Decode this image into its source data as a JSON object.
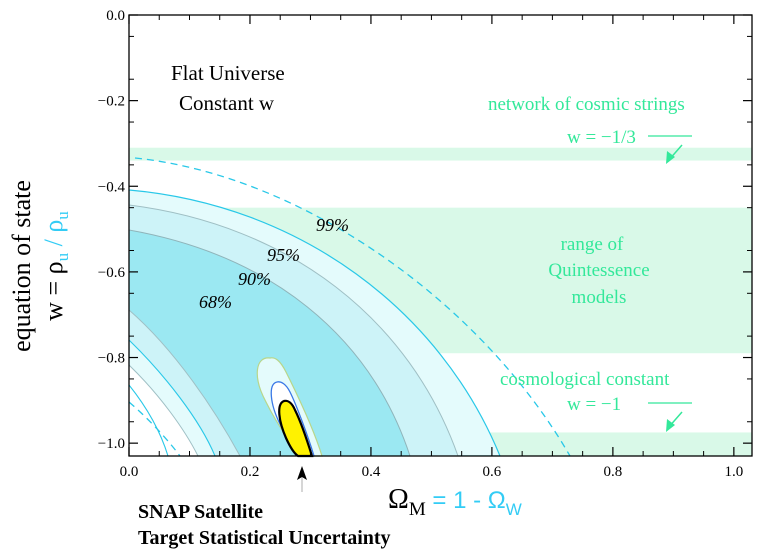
{
  "chart_data": {
    "type": "contour",
    "title": "",
    "xlim": [
      0.0,
      1.03
    ],
    "ylim": [
      -1.03,
      0.0
    ],
    "x_ticks": [
      "0.0",
      "0.2",
      "0.4",
      "0.6",
      "0.8",
      "1.0"
    ],
    "y_ticks": [
      "0.0",
      "−0.2",
      "−0.4",
      "−0.6",
      "−0.8",
      "−1.0"
    ],
    "x_tick_values": [
      0.0,
      0.2,
      0.4,
      0.6,
      0.8,
      1.0
    ],
    "y_tick_values": [
      0.0,
      -0.2,
      -0.4,
      -0.6,
      -0.8,
      -1.0
    ],
    "xlabel": {
      "symbol": "Ω",
      "sub": "M",
      "suffix": " = 1 - Ω",
      "suffix_sub": "W"
    },
    "ylabel": {
      "line1": "equation of state",
      "line2_prefix": "w = ρ",
      "line2_sub1": "u",
      "line2_mid": " / ρ",
      "line2_sub2": "u"
    },
    "bands": [
      {
        "name": "network of cosmic strings",
        "w_range": [
          -0.34,
          -0.31
        ]
      },
      {
        "name": "range of Quintessence models",
        "w_range": [
          -0.79,
          -0.45
        ]
      },
      {
        "name": "cosmological constant",
        "w_range": [
          -1.03,
          -0.975
        ]
      }
    ],
    "confidence_labels": [
      "99%",
      "95%",
      "90%",
      "68%"
    ],
    "snap_best_fit": {
      "omega_m": 0.28,
      "w": -1.0
    },
    "colors": {
      "band": "#d9f9e8",
      "green_text": "#33e89a",
      "contour_68": "#9be8f2",
      "contour_90": "#cdf3f8",
      "contour_95": "#e4fbfc",
      "snap_fill": "#fff200",
      "line_cyan": "#29c8e8",
      "label_blue": "#33ccf5"
    }
  },
  "annotations": {
    "flat_universe_line1": "Flat Universe",
    "flat_universe_line2": "Constant w",
    "cosmic_strings_label": "network of cosmic strings",
    "cosmic_strings_w": "w = −1/3",
    "quintessence_line1": "range of",
    "quintessence_line2": "Quintessence",
    "quintessence_line3": "models",
    "cosmological_constant_label": "cosmological constant",
    "cosmological_constant_w": "w = −1",
    "snap_line1": "SNAP Satellite",
    "snap_line2": "Target Statistical Uncertainty"
  }
}
